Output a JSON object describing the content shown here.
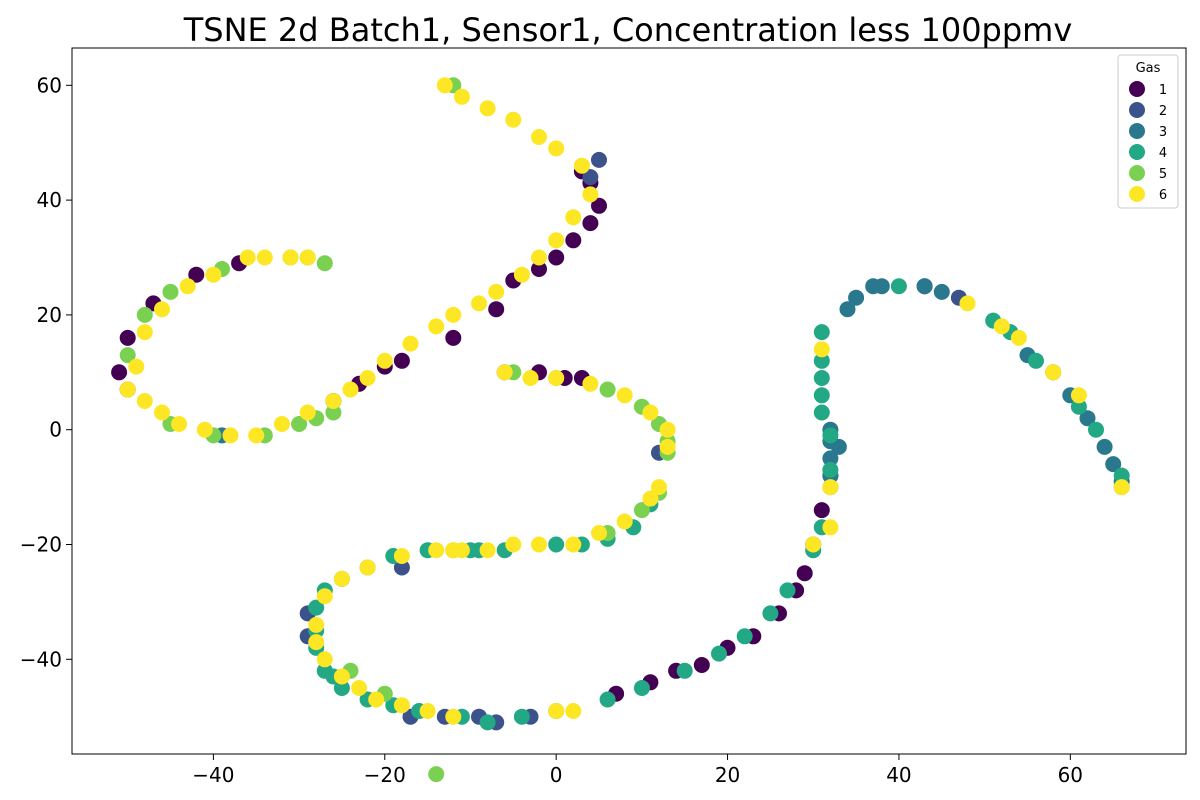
{
  "chart_data": {
    "type": "scatter",
    "title": "TSNE 2d Batch1, Sensor1, Concentration less 100ppmv",
    "xlabel": "",
    "ylabel": "",
    "xlim": [
      -56.5,
      73.5
    ],
    "ylim": [
      -56.5,
      66.5
    ],
    "x_ticks": [
      -40,
      -20,
      0,
      20,
      40,
      60
    ],
    "y_ticks": [
      -40,
      -20,
      0,
      20,
      40,
      60
    ],
    "x_tick_labels": [
      "−40",
      "−20",
      "0",
      "20",
      "40",
      "60"
    ],
    "y_tick_labels": [
      "−40",
      "−20",
      "0",
      "20",
      "40",
      "60"
    ],
    "grid": false,
    "legend": {
      "title": "Gas",
      "position": "top-right"
    },
    "series": [
      {
        "name": "1",
        "color": "#440154",
        "points": [
          [
            -37,
            29
          ],
          [
            -42,
            27
          ],
          [
            -47,
            22
          ],
          [
            -50,
            16
          ],
          [
            -51,
            10
          ],
          [
            -50,
            7
          ],
          [
            -7,
            21
          ],
          [
            -12,
            16
          ],
          [
            -18,
            12
          ],
          [
            -20,
            11
          ],
          [
            -23,
            8
          ],
          [
            -26,
            5
          ],
          [
            -5,
            26
          ],
          [
            -2,
            28
          ],
          [
            0,
            30
          ],
          [
            2,
            33
          ],
          [
            4,
            36
          ],
          [
            5,
            39
          ],
          [
            4,
            43
          ],
          [
            3,
            45
          ],
          [
            -2,
            10
          ],
          [
            1,
            9
          ],
          [
            3,
            9
          ],
          [
            32,
            -8
          ],
          [
            31,
            -14
          ],
          [
            30,
            -20
          ],
          [
            29,
            -25
          ],
          [
            28,
            -28
          ],
          [
            26,
            -32
          ],
          [
            23,
            -36
          ],
          [
            20,
            -38
          ],
          [
            17,
            -41
          ],
          [
            14,
            -42
          ],
          [
            11,
            -44
          ],
          [
            7,
            -46
          ]
        ]
      },
      {
        "name": "2",
        "color": "#3b528b",
        "points": [
          [
            -6,
            10
          ],
          [
            -9,
            -50
          ],
          [
            -13,
            -50
          ],
          [
            -18,
            -24
          ],
          [
            -29,
            -32
          ],
          [
            -29,
            -36
          ],
          [
            4,
            44
          ],
          [
            5,
            47
          ],
          [
            43,
            25
          ],
          [
            47,
            23
          ],
          [
            12,
            -4
          ],
          [
            -17,
            -50
          ],
          [
            -7,
            -51
          ],
          [
            -3,
            -50
          ]
        ]
      },
      {
        "name": "3",
        "color": "#2a788e",
        "points": [
          [
            32,
            -2
          ],
          [
            32,
            -5
          ],
          [
            32,
            -8
          ],
          [
            32,
            -10
          ],
          [
            33,
            -3
          ],
          [
            32,
            0
          ],
          [
            34,
            21
          ],
          [
            35,
            23
          ],
          [
            37,
            25
          ],
          [
            38,
            25
          ],
          [
            43,
            25
          ],
          [
            45,
            24
          ],
          [
            55,
            13
          ],
          [
            58,
            10
          ],
          [
            60,
            6
          ],
          [
            62,
            2
          ],
          [
            64,
            -3
          ],
          [
            65,
            -6
          ],
          [
            66,
            -9
          ],
          [
            -39,
            -1
          ]
        ]
      },
      {
        "name": "4",
        "color": "#22a884",
        "points": [
          [
            31,
            17
          ],
          [
            31,
            12
          ],
          [
            31,
            9
          ],
          [
            31,
            6
          ],
          [
            31,
            3
          ],
          [
            32,
            -1
          ],
          [
            32,
            -7
          ],
          [
            31,
            -17
          ],
          [
            30,
            -21
          ],
          [
            27,
            -28
          ],
          [
            25,
            -32
          ],
          [
            22,
            -36
          ],
          [
            19,
            -39
          ],
          [
            15,
            -42
          ],
          [
            10,
            -45
          ],
          [
            6,
            -47
          ],
          [
            0,
            -49
          ],
          [
            -4,
            -50
          ],
          [
            -8,
            -51
          ],
          [
            -11,
            -50
          ],
          [
            -16,
            -49
          ],
          [
            -19,
            -48
          ],
          [
            -22,
            -47
          ],
          [
            -25,
            -45
          ],
          [
            -26,
            -43
          ],
          [
            -27,
            -42
          ],
          [
            -28,
            -38
          ],
          [
            -28,
            -35
          ],
          [
            -28,
            -31
          ],
          [
            -27,
            -28
          ],
          [
            -25,
            -26
          ],
          [
            -22,
            -24
          ],
          [
            -19,
            -22
          ],
          [
            -15,
            -21
          ],
          [
            -10,
            -21
          ],
          [
            -6,
            -21
          ],
          [
            0,
            -20
          ],
          [
            3,
            -20
          ],
          [
            6,
            -19
          ],
          [
            9,
            -17
          ],
          [
            11,
            -13
          ],
          [
            -9,
            -21
          ],
          [
            51,
            19
          ],
          [
            53,
            17
          ],
          [
            56,
            12
          ],
          [
            61,
            4
          ],
          [
            63,
            0
          ],
          [
            66,
            -8
          ],
          [
            66,
            -10
          ],
          [
            40,
            25
          ]
        ]
      },
      {
        "name": "5",
        "color": "#7ad151",
        "points": [
          [
            -31,
            30
          ],
          [
            -29,
            30
          ],
          [
            -27,
            29
          ],
          [
            -39,
            28
          ],
          [
            -45,
            24
          ],
          [
            -48,
            20
          ],
          [
            -50,
            13
          ],
          [
            -45,
            1
          ],
          [
            -40,
            -1
          ],
          [
            -34,
            -1
          ],
          [
            -30,
            1
          ],
          [
            -26,
            3
          ],
          [
            -28,
            2
          ],
          [
            -5,
            10
          ],
          [
            0,
            9
          ],
          [
            6,
            7
          ],
          [
            10,
            4
          ],
          [
            12,
            1
          ],
          [
            13,
            -2
          ],
          [
            13,
            -4
          ],
          [
            12,
            -11
          ],
          [
            10,
            -14
          ],
          [
            6,
            -18
          ],
          [
            -12,
            -21
          ],
          [
            -14,
            -60
          ],
          [
            -12,
            60
          ],
          [
            -24,
            -42
          ],
          [
            -20,
            -46
          ]
        ]
      },
      {
        "name": "6",
        "color": "#fde725",
        "points": [
          [
            -13,
            60
          ],
          [
            -11,
            58
          ],
          [
            -8,
            56
          ],
          [
            -5,
            54
          ],
          [
            -2,
            51
          ],
          [
            0,
            49
          ],
          [
            3,
            46
          ],
          [
            4,
            41
          ],
          [
            2,
            37
          ],
          [
            0,
            33
          ],
          [
            -2,
            30
          ],
          [
            -4,
            27
          ],
          [
            -7,
            24
          ],
          [
            -9,
            22
          ],
          [
            -12,
            20
          ],
          [
            -14,
            18
          ],
          [
            -17,
            15
          ],
          [
            -20,
            12
          ],
          [
            -22,
            9
          ],
          [
            -24,
            7
          ],
          [
            -26,
            5
          ],
          [
            -29,
            3
          ],
          [
            -32,
            1
          ],
          [
            -35,
            -1
          ],
          [
            -38,
            -1
          ],
          [
            -41,
            0
          ],
          [
            -44,
            1
          ],
          [
            -46,
            3
          ],
          [
            -48,
            5
          ],
          [
            -50,
            7
          ],
          [
            -49,
            11
          ],
          [
            -48,
            17
          ],
          [
            -46,
            21
          ],
          [
            -43,
            25
          ],
          [
            -40,
            27
          ],
          [
            -36,
            30
          ],
          [
            -34,
            30
          ],
          [
            -31,
            30
          ],
          [
            -29,
            30
          ],
          [
            -6,
            10
          ],
          [
            -3,
            9
          ],
          [
            0,
            9
          ],
          [
            4,
            8
          ],
          [
            8,
            6
          ],
          [
            11,
            3
          ],
          [
            13,
            0
          ],
          [
            13,
            -3
          ],
          [
            12,
            -10
          ],
          [
            11,
            -12
          ],
          [
            8,
            -16
          ],
          [
            5,
            -18
          ],
          [
            2,
            -20
          ],
          [
            -2,
            -20
          ],
          [
            -5,
            -20
          ],
          [
            -8,
            -21
          ],
          [
            -11,
            -21
          ],
          [
            -14,
            -21
          ],
          [
            -18,
            -22
          ],
          [
            -22,
            -24
          ],
          [
            -25,
            -26
          ],
          [
            -27,
            -29
          ],
          [
            -28,
            -34
          ],
          [
            -28,
            -37
          ],
          [
            -27,
            -40
          ],
          [
            -25,
            -43
          ],
          [
            -23,
            -45
          ],
          [
            -21,
            -47
          ],
          [
            -18,
            -48
          ],
          [
            -15,
            -49
          ],
          [
            -12,
            -50
          ],
          [
            0,
            -49
          ],
          [
            2,
            -49
          ],
          [
            31,
            14
          ],
          [
            32,
            -10
          ],
          [
            32,
            -17
          ],
          [
            66,
            -10
          ],
          [
            48,
            22
          ],
          [
            52,
            18
          ],
          [
            54,
            16
          ],
          [
            58,
            10
          ],
          [
            61,
            6
          ],
          [
            30,
            -20
          ],
          [
            -12,
            -21
          ]
        ]
      }
    ]
  }
}
